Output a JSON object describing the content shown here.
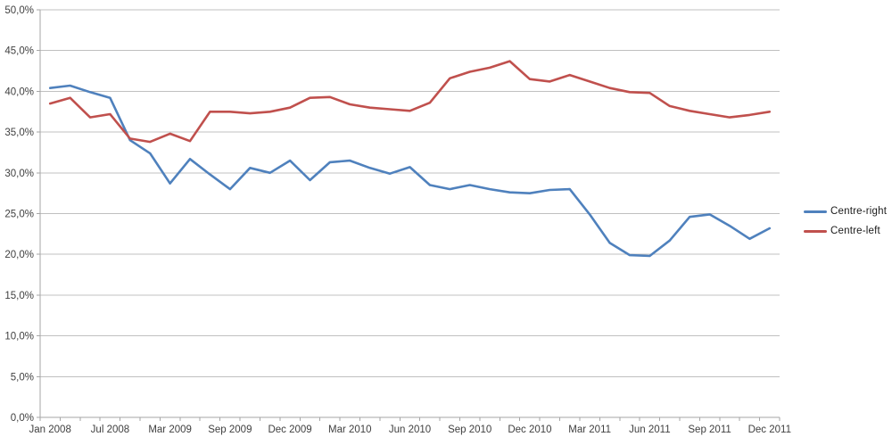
{
  "chart_data": {
    "type": "line",
    "title": "",
    "grid": true,
    "legend_position": "right",
    "x_axis": {
      "n_categories": 37,
      "label_every": 3,
      "labels": [
        "Jan 2008",
        "Jul 2008",
        "Mar 2009",
        "Sep 2009",
        "Dec 2009",
        "Mar 2010",
        "Jun 2010",
        "Sep 2010",
        "Dec 2010",
        "Mar 2011",
        "Jun 2011",
        "Sep 2011",
        "Dec 2011"
      ]
    },
    "y_axis": {
      "min": 0,
      "max": 50,
      "step": 5,
      "tick_labels": [
        "0,0%",
        "5,0%",
        "10,0%",
        "15,0%",
        "20,0%",
        "25,0%",
        "30,0%",
        "35,0%",
        "40,0%",
        "45,0%",
        "50,0%"
      ]
    },
    "series": [
      {
        "name": "Centre-right",
        "color": "#4F81BD",
        "values": [
          40.4,
          40.7,
          39.9,
          39.2,
          34.0,
          32.4,
          28.7,
          31.7,
          29.8,
          28.0,
          30.6,
          30.0,
          31.5,
          29.1,
          31.3,
          31.5,
          30.6,
          29.9,
          30.7,
          28.5,
          28.0,
          28.5,
          28.0,
          27.6,
          27.5,
          27.9,
          28.0,
          24.9,
          21.4,
          19.9,
          19.8,
          21.7,
          24.6,
          24.9,
          23.5,
          21.9,
          23.2
        ]
      },
      {
        "name": "Centre-left",
        "color": "#C0504D",
        "values": [
          38.5,
          39.2,
          36.8,
          37.2,
          34.2,
          33.8,
          34.8,
          33.9,
          37.5,
          37.5,
          37.3,
          37.5,
          38.0,
          39.2,
          39.3,
          38.4,
          38.0,
          37.8,
          37.6,
          38.6,
          41.6,
          42.4,
          42.9,
          43.7,
          41.5,
          41.2,
          42.0,
          41.2,
          40.4,
          39.9,
          39.8,
          38.2,
          37.6,
          37.2,
          36.8,
          37.1,
          37.5
        ]
      }
    ],
    "colors": {
      "background": "#FFFFFF",
      "gridline": "#C0C0C0",
      "axis": "#A6A6A6",
      "tick_text": "#404040",
      "legend_text": "#1A1A1A"
    }
  }
}
